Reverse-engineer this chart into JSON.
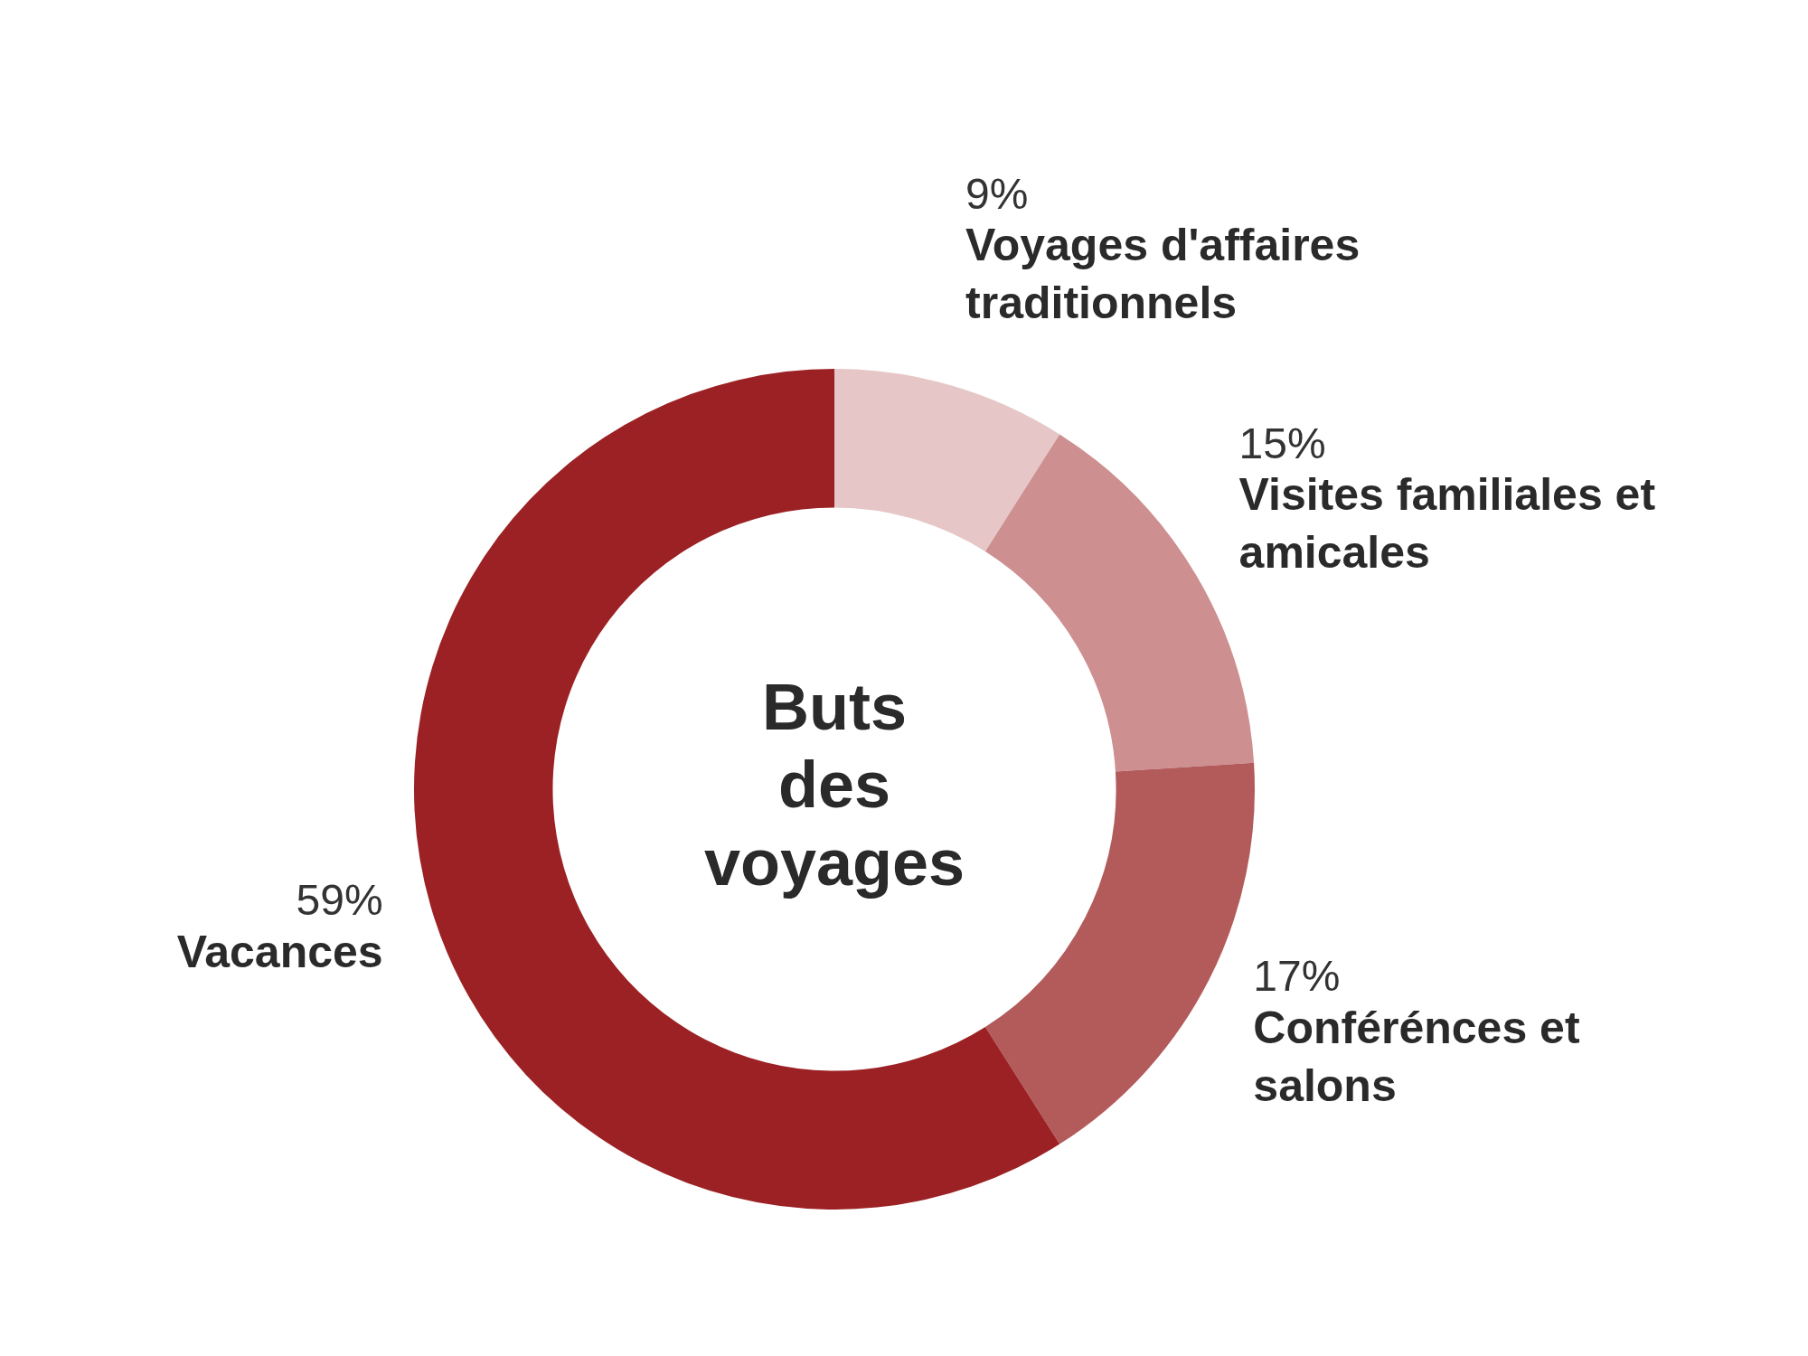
{
  "chart_data": {
    "type": "donut",
    "title": "Buts des voyages",
    "categories": [
      "Voyages d'affaires traditionnels",
      "Visites familiales et amicales",
      "Conférénces et salons",
      "Vacances"
    ],
    "values": [
      9,
      15,
      17,
      59
    ],
    "value_labels": [
      "9%",
      "15%",
      "17%",
      "59%"
    ],
    "colors": [
      "#e6c6c7",
      "#cd8f90",
      "#b35a5b",
      "#9b2124"
    ],
    "legend": false
  }
}
